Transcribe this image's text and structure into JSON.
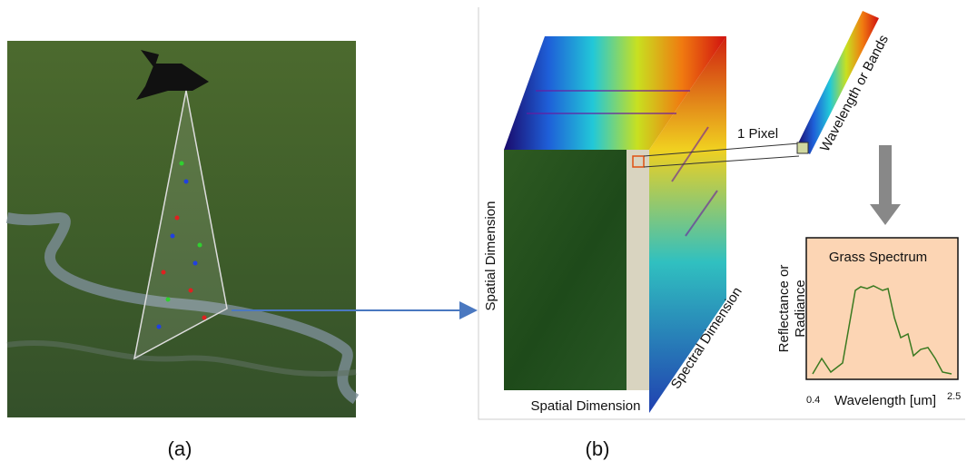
{
  "panel_a": {
    "caption": "(a)"
  },
  "panel_b": {
    "caption": "(b)",
    "pixel_label": "1 Pixel",
    "bands_label": "Wavelength or Bands",
    "spatial_vertical": "Spatial Dimension",
    "spatial_horizontal": "Spatial Dimension",
    "spectral_label": "Spectral Dimension",
    "spectrum": {
      "title": "Grass Spectrum",
      "y_label_lines": [
        "Reflectance or",
        "Radiance"
      ],
      "x_label": "Wavelength [um]",
      "x_start": "0.4",
      "x_end": "2.5"
    }
  }
}
